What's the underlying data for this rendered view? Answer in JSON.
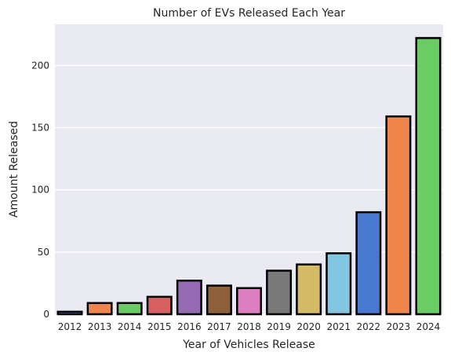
{
  "chart_data": {
    "type": "bar",
    "title": "Number of EVs Released Each Year",
    "xlabel": "Year of Vehicles Release",
    "ylabel": "Amount Released",
    "categories": [
      "2012",
      "2013",
      "2014",
      "2015",
      "2016",
      "2017",
      "2018",
      "2019",
      "2020",
      "2021",
      "2022",
      "2023",
      "2024"
    ],
    "values": [
      2,
      9,
      9,
      14,
      27,
      23,
      21,
      35,
      40,
      49,
      82,
      159,
      222
    ],
    "ylim": [
      0,
      233
    ],
    "yticks": [
      0,
      50,
      100,
      150,
      200
    ],
    "grid": true,
    "background_color": "#eaeaf2",
    "bar_edge_color": "#000000",
    "colors": [
      "#4878d0",
      "#ee854a",
      "#6acc64",
      "#d65f5f",
      "#956cb4",
      "#8c613c",
      "#dc7ec0",
      "#797979",
      "#d5bb67",
      "#82c6e2",
      "#4878d0",
      "#ee854a",
      "#6acc64"
    ]
  }
}
